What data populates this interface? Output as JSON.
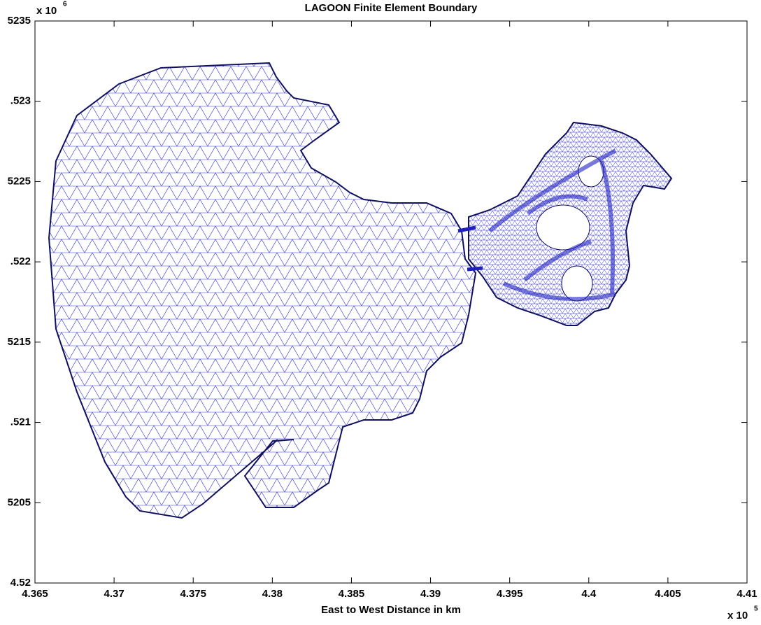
{
  "chart_data": {
    "type": "mesh",
    "title": "LAGOON Finite Element Boundary",
    "x_label": "East to West Distance in km",
    "x_multiplier": {
      "base": "x 10",
      "exponent": "5"
    },
    "y_multiplier": {
      "base": "x 10",
      "exponent": "6"
    },
    "xlim": [
      4.365,
      4.41
    ],
    "xticks": [
      4.365,
      4.37,
      4.375,
      4.38,
      4.385,
      4.39,
      4.395,
      4.4,
      4.405,
      4.41
    ],
    "ylim": [
      4.52,
      4.5235
    ],
    "yticks": [
      4.52,
      {
        "value": 4.5205,
        "label": "5205"
      },
      {
        "value": 4.521,
        "label": ".521"
      },
      {
        "value": 4.5215,
        "label": "5215"
      },
      {
        "value": 4.522,
        "label": ".522"
      },
      {
        "value": 4.5225,
        "label": "5225"
      },
      {
        "value": 4.523,
        "label": ".523"
      },
      {
        "value": 4.5235,
        "label": "5235"
      }
    ],
    "color": "#2020c8"
  }
}
